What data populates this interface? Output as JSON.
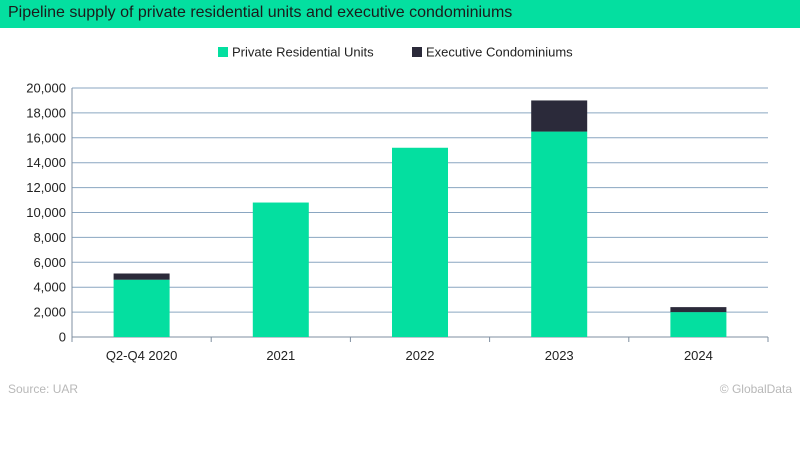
{
  "header": {
    "title": "Pipeline supply of private residential units and executive condominiums"
  },
  "footer": {
    "source": "Source: UAR",
    "credit_symbol": "©",
    "credit": "GlobalData"
  },
  "colors": {
    "header_bg": "#04dfa0",
    "private": "#04dfa0",
    "ec": "#2b2a3a",
    "grid": "#8aa6c1"
  },
  "chart_data": {
    "type": "bar",
    "stacked": true,
    "categories": [
      "Q2-Q4 2020",
      "2021",
      "2022",
      "2023",
      "2024"
    ],
    "series": [
      {
        "name": "Private Residential Units",
        "color": "#04dfa0",
        "values": [
          4600,
          10800,
          15200,
          16500,
          2000
        ]
      },
      {
        "name": "Executive Condominiums",
        "color": "#2b2a3a",
        "values": [
          500,
          0,
          0,
          2500,
          400
        ]
      }
    ],
    "ylim": [
      0,
      20000
    ],
    "yticks": [
      0,
      2000,
      4000,
      6000,
      8000,
      10000,
      12000,
      14000,
      16000,
      18000,
      20000
    ],
    "ytick_labels": [
      "0",
      "2,000",
      "4,000",
      "6,000",
      "8,000",
      "10,000",
      "12,000",
      "14,000",
      "16,000",
      "18,000",
      "20,000"
    ],
    "grid": true,
    "legend_position": "top-center"
  }
}
